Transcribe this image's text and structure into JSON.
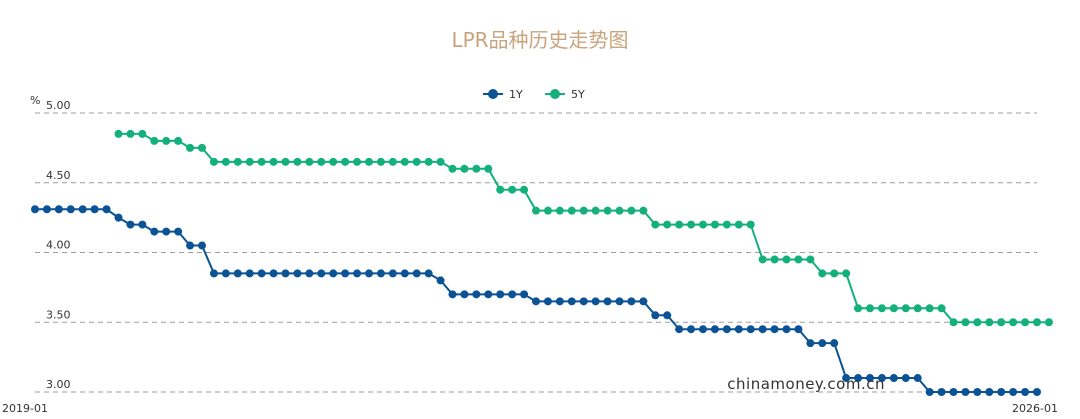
{
  "chart_data": {
    "type": "line",
    "title": "LPR品种历史走势图",
    "unit_label": "%",
    "watermark": "chinamoney.com.cn",
    "x_start_label": "2019-01",
    "x_end_label": "2026-01",
    "y_ticks": [
      "5.00",
      "4.50",
      "4.00",
      "3.50",
      "3.00"
    ],
    "ylim": [
      3.0,
      5.0
    ],
    "grid": true,
    "legend_position": "top-center",
    "colors": {
      "1Y": "#0b5394",
      "5Y": "#13b07b",
      "title": "#c8a47e",
      "grid": "#9e9e9e"
    },
    "series": [
      {
        "name": "1Y",
        "values": [
          4.31,
          4.31,
          4.31,
          4.31,
          4.31,
          4.31,
          4.31,
          4.25,
          4.2,
          4.2,
          4.15,
          4.15,
          4.15,
          4.05,
          4.05,
          3.85,
          3.85,
          3.85,
          3.85,
          3.85,
          3.85,
          3.85,
          3.85,
          3.85,
          3.85,
          3.85,
          3.85,
          3.85,
          3.85,
          3.85,
          3.85,
          3.85,
          3.85,
          3.85,
          3.8,
          3.7,
          3.7,
          3.7,
          3.7,
          3.7,
          3.7,
          3.7,
          3.65,
          3.65,
          3.65,
          3.65,
          3.65,
          3.65,
          3.65,
          3.65,
          3.65,
          3.65,
          3.55,
          3.55,
          3.45,
          3.45,
          3.45,
          3.45,
          3.45,
          3.45,
          3.45,
          3.45,
          3.45,
          3.45,
          3.45,
          3.35,
          3.35,
          3.35,
          3.1,
          3.1,
          3.1,
          3.1,
          3.1,
          3.1,
          3.1,
          3.0,
          3.0,
          3.0,
          3.0,
          3.0,
          3.0,
          3.0,
          3.0,
          3.0,
          3.0
        ]
      },
      {
        "name": "5Y",
        "values": [
          null,
          null,
          null,
          null,
          null,
          null,
          null,
          4.85,
          4.85,
          4.85,
          4.8,
          4.8,
          4.8,
          4.75,
          4.75,
          4.65,
          4.65,
          4.65,
          4.65,
          4.65,
          4.65,
          4.65,
          4.65,
          4.65,
          4.65,
          4.65,
          4.65,
          4.65,
          4.65,
          4.65,
          4.65,
          4.65,
          4.65,
          4.65,
          4.65,
          4.6,
          4.6,
          4.6,
          4.6,
          4.45,
          4.45,
          4.45,
          4.3,
          4.3,
          4.3,
          4.3,
          4.3,
          4.3,
          4.3,
          4.3,
          4.3,
          4.3,
          4.2,
          4.2,
          4.2,
          4.2,
          4.2,
          4.2,
          4.2,
          4.2,
          4.2,
          3.95,
          3.95,
          3.95,
          3.95,
          3.95,
          3.85,
          3.85,
          3.85,
          3.6,
          3.6,
          3.6,
          3.6,
          3.6,
          3.6,
          3.6,
          3.6,
          3.5,
          3.5,
          3.5,
          3.5,
          3.5,
          3.5,
          3.5,
          3.5,
          3.5
        ]
      }
    ]
  }
}
